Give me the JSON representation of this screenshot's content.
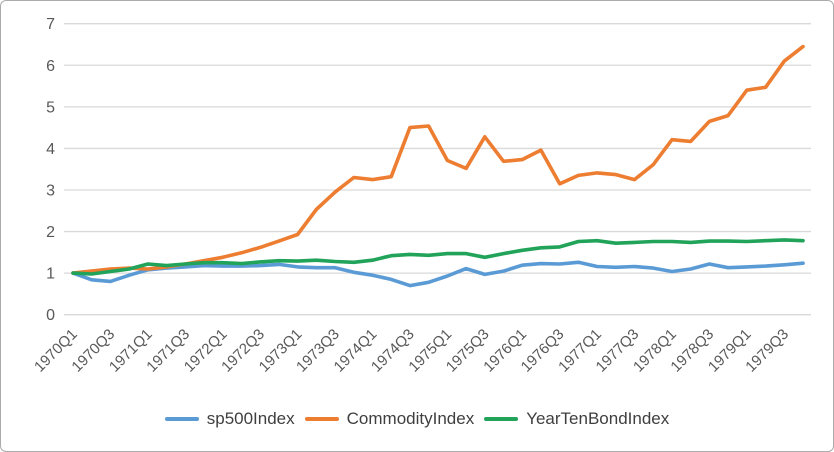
{
  "chart_data": {
    "type": "line",
    "title": "",
    "xlabel": "",
    "ylabel": "",
    "ylim": [
      0,
      7
    ],
    "y_ticks": [
      0,
      1,
      2,
      3,
      4,
      5,
      6,
      7
    ],
    "x_tick_step": 2,
    "grid": "horizontal",
    "legend_position": "bottom",
    "gridline_color": "#d9d9d9",
    "axis_label_color": "#595959",
    "categories": [
      "1970Q1",
      "1970Q2",
      "1970Q3",
      "1970Q4",
      "1971Q1",
      "1971Q2",
      "1971Q3",
      "1971Q4",
      "1972Q1",
      "1972Q2",
      "1972Q3",
      "1972Q4",
      "1973Q1",
      "1973Q2",
      "1973Q3",
      "1973Q4",
      "1974Q1",
      "1974Q2",
      "1974Q3",
      "1974Q4",
      "1975Q1",
      "1975Q2",
      "1975Q3",
      "1975Q4",
      "1976Q1",
      "1976Q2",
      "1976Q3",
      "1976Q4",
      "1977Q1",
      "1977Q2",
      "1977Q3",
      "1977Q4",
      "1978Q1",
      "1978Q2",
      "1978Q3",
      "1978Q4",
      "1979Q1",
      "1979Q2",
      "1979Q3",
      "1979Q4"
    ],
    "series": [
      {
        "name": "sp500Index",
        "color": "#5b9bd5",
        "values": [
          1.0,
          0.84,
          0.8,
          0.95,
          1.08,
          1.12,
          1.15,
          1.18,
          1.17,
          1.17,
          1.18,
          1.21,
          1.15,
          1.13,
          1.13,
          1.02,
          0.95,
          0.85,
          0.7,
          0.78,
          0.93,
          1.11,
          0.97,
          1.05,
          1.19,
          1.23,
          1.22,
          1.26,
          1.16,
          1.14,
          1.16,
          1.12,
          1.04,
          1.1,
          1.22,
          1.13,
          1.15,
          1.17,
          1.2,
          1.24
        ]
      },
      {
        "name": "CommodityIndex",
        "color": "#ed7d31",
        "values": [
          1.0,
          1.05,
          1.1,
          1.12,
          1.1,
          1.15,
          1.22,
          1.3,
          1.38,
          1.49,
          1.62,
          1.77,
          1.93,
          2.53,
          2.95,
          3.3,
          3.25,
          3.32,
          4.5,
          4.54,
          3.71,
          3.52,
          4.28,
          3.69,
          3.73,
          3.96,
          3.15,
          3.35,
          3.41,
          3.37,
          3.25,
          3.61,
          4.21,
          4.17,
          4.65,
          4.79,
          5.4,
          5.47,
          6.1,
          6.45
        ]
      },
      {
        "name": "YearTenBondIndex",
        "color": "#21a35a",
        "values": [
          1.0,
          0.98,
          1.04,
          1.1,
          1.22,
          1.18,
          1.22,
          1.25,
          1.25,
          1.23,
          1.27,
          1.3,
          1.29,
          1.31,
          1.28,
          1.26,
          1.31,
          1.42,
          1.45,
          1.43,
          1.47,
          1.47,
          1.38,
          1.47,
          1.55,
          1.61,
          1.63,
          1.76,
          1.78,
          1.72,
          1.74,
          1.76,
          1.76,
          1.74,
          1.77,
          1.77,
          1.76,
          1.78,
          1.8,
          1.78
        ]
      }
    ]
  }
}
